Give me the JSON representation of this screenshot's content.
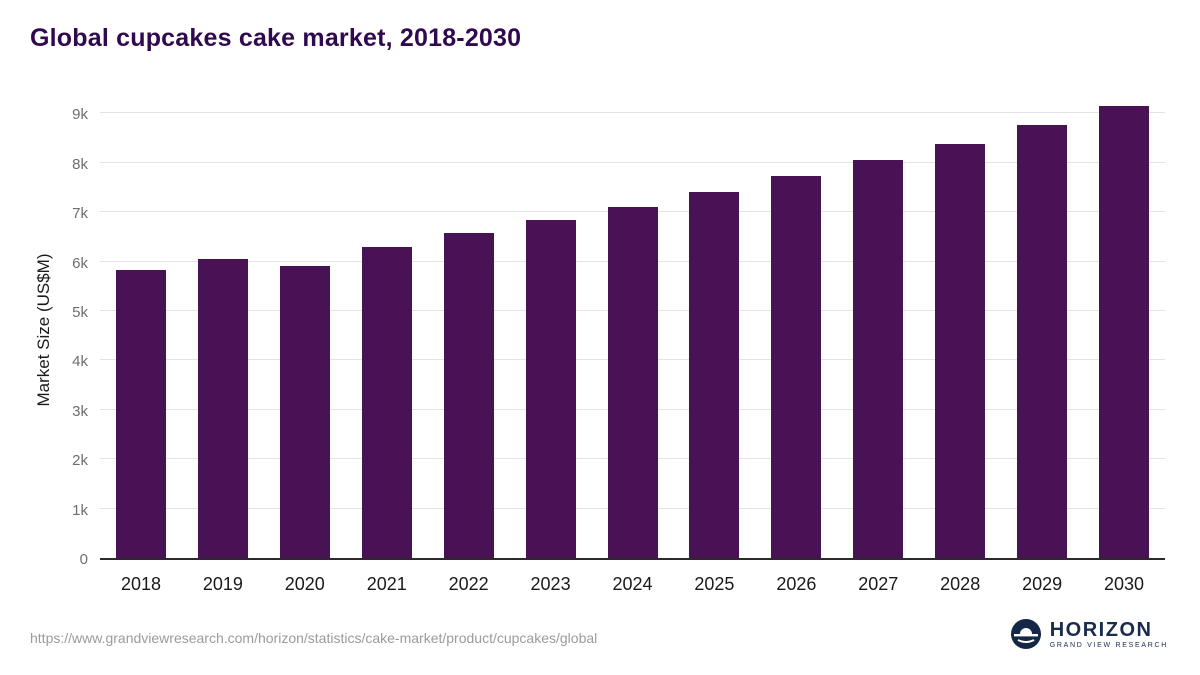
{
  "title": "Global cupcakes cake market, 2018-2030",
  "chart_data": {
    "type": "bar",
    "title": "Global cupcakes cake market, 2018-2030",
    "categories": [
      "2018",
      "2019",
      "2020",
      "2021",
      "2022",
      "2023",
      "2024",
      "2025",
      "2026",
      "2027",
      "2028",
      "2029",
      "2030"
    ],
    "values": [
      5830,
      6060,
      5910,
      6290,
      6570,
      6840,
      7110,
      7410,
      7740,
      8050,
      8390,
      8760,
      9160
    ],
    "xlabel": "",
    "ylabel": "Market Size (US$M)",
    "ylim": [
      0,
      9400
    ],
    "yticks": [
      {
        "value": 0,
        "label": "0"
      },
      {
        "value": 1000,
        "label": "1k"
      },
      {
        "value": 2000,
        "label": "2k"
      },
      {
        "value": 3000,
        "label": "3k"
      },
      {
        "value": 4000,
        "label": "4k"
      },
      {
        "value": 5000,
        "label": "5k"
      },
      {
        "value": 6000,
        "label": "6k"
      },
      {
        "value": 7000,
        "label": "7k"
      },
      {
        "value": 8000,
        "label": "8k"
      },
      {
        "value": 9000,
        "label": "9k"
      }
    ],
    "grid": "horizontal",
    "legend": "none",
    "bar_color": "#481254"
  },
  "footer": {
    "source_url": "https://www.grandviewresearch.com/horizon/statistics/cake-market/product/cupcakes/global",
    "logo": {
      "title": "HORIZON",
      "subtitle": "GRAND VIEW RESEARCH",
      "icon_color": "#152747"
    }
  }
}
